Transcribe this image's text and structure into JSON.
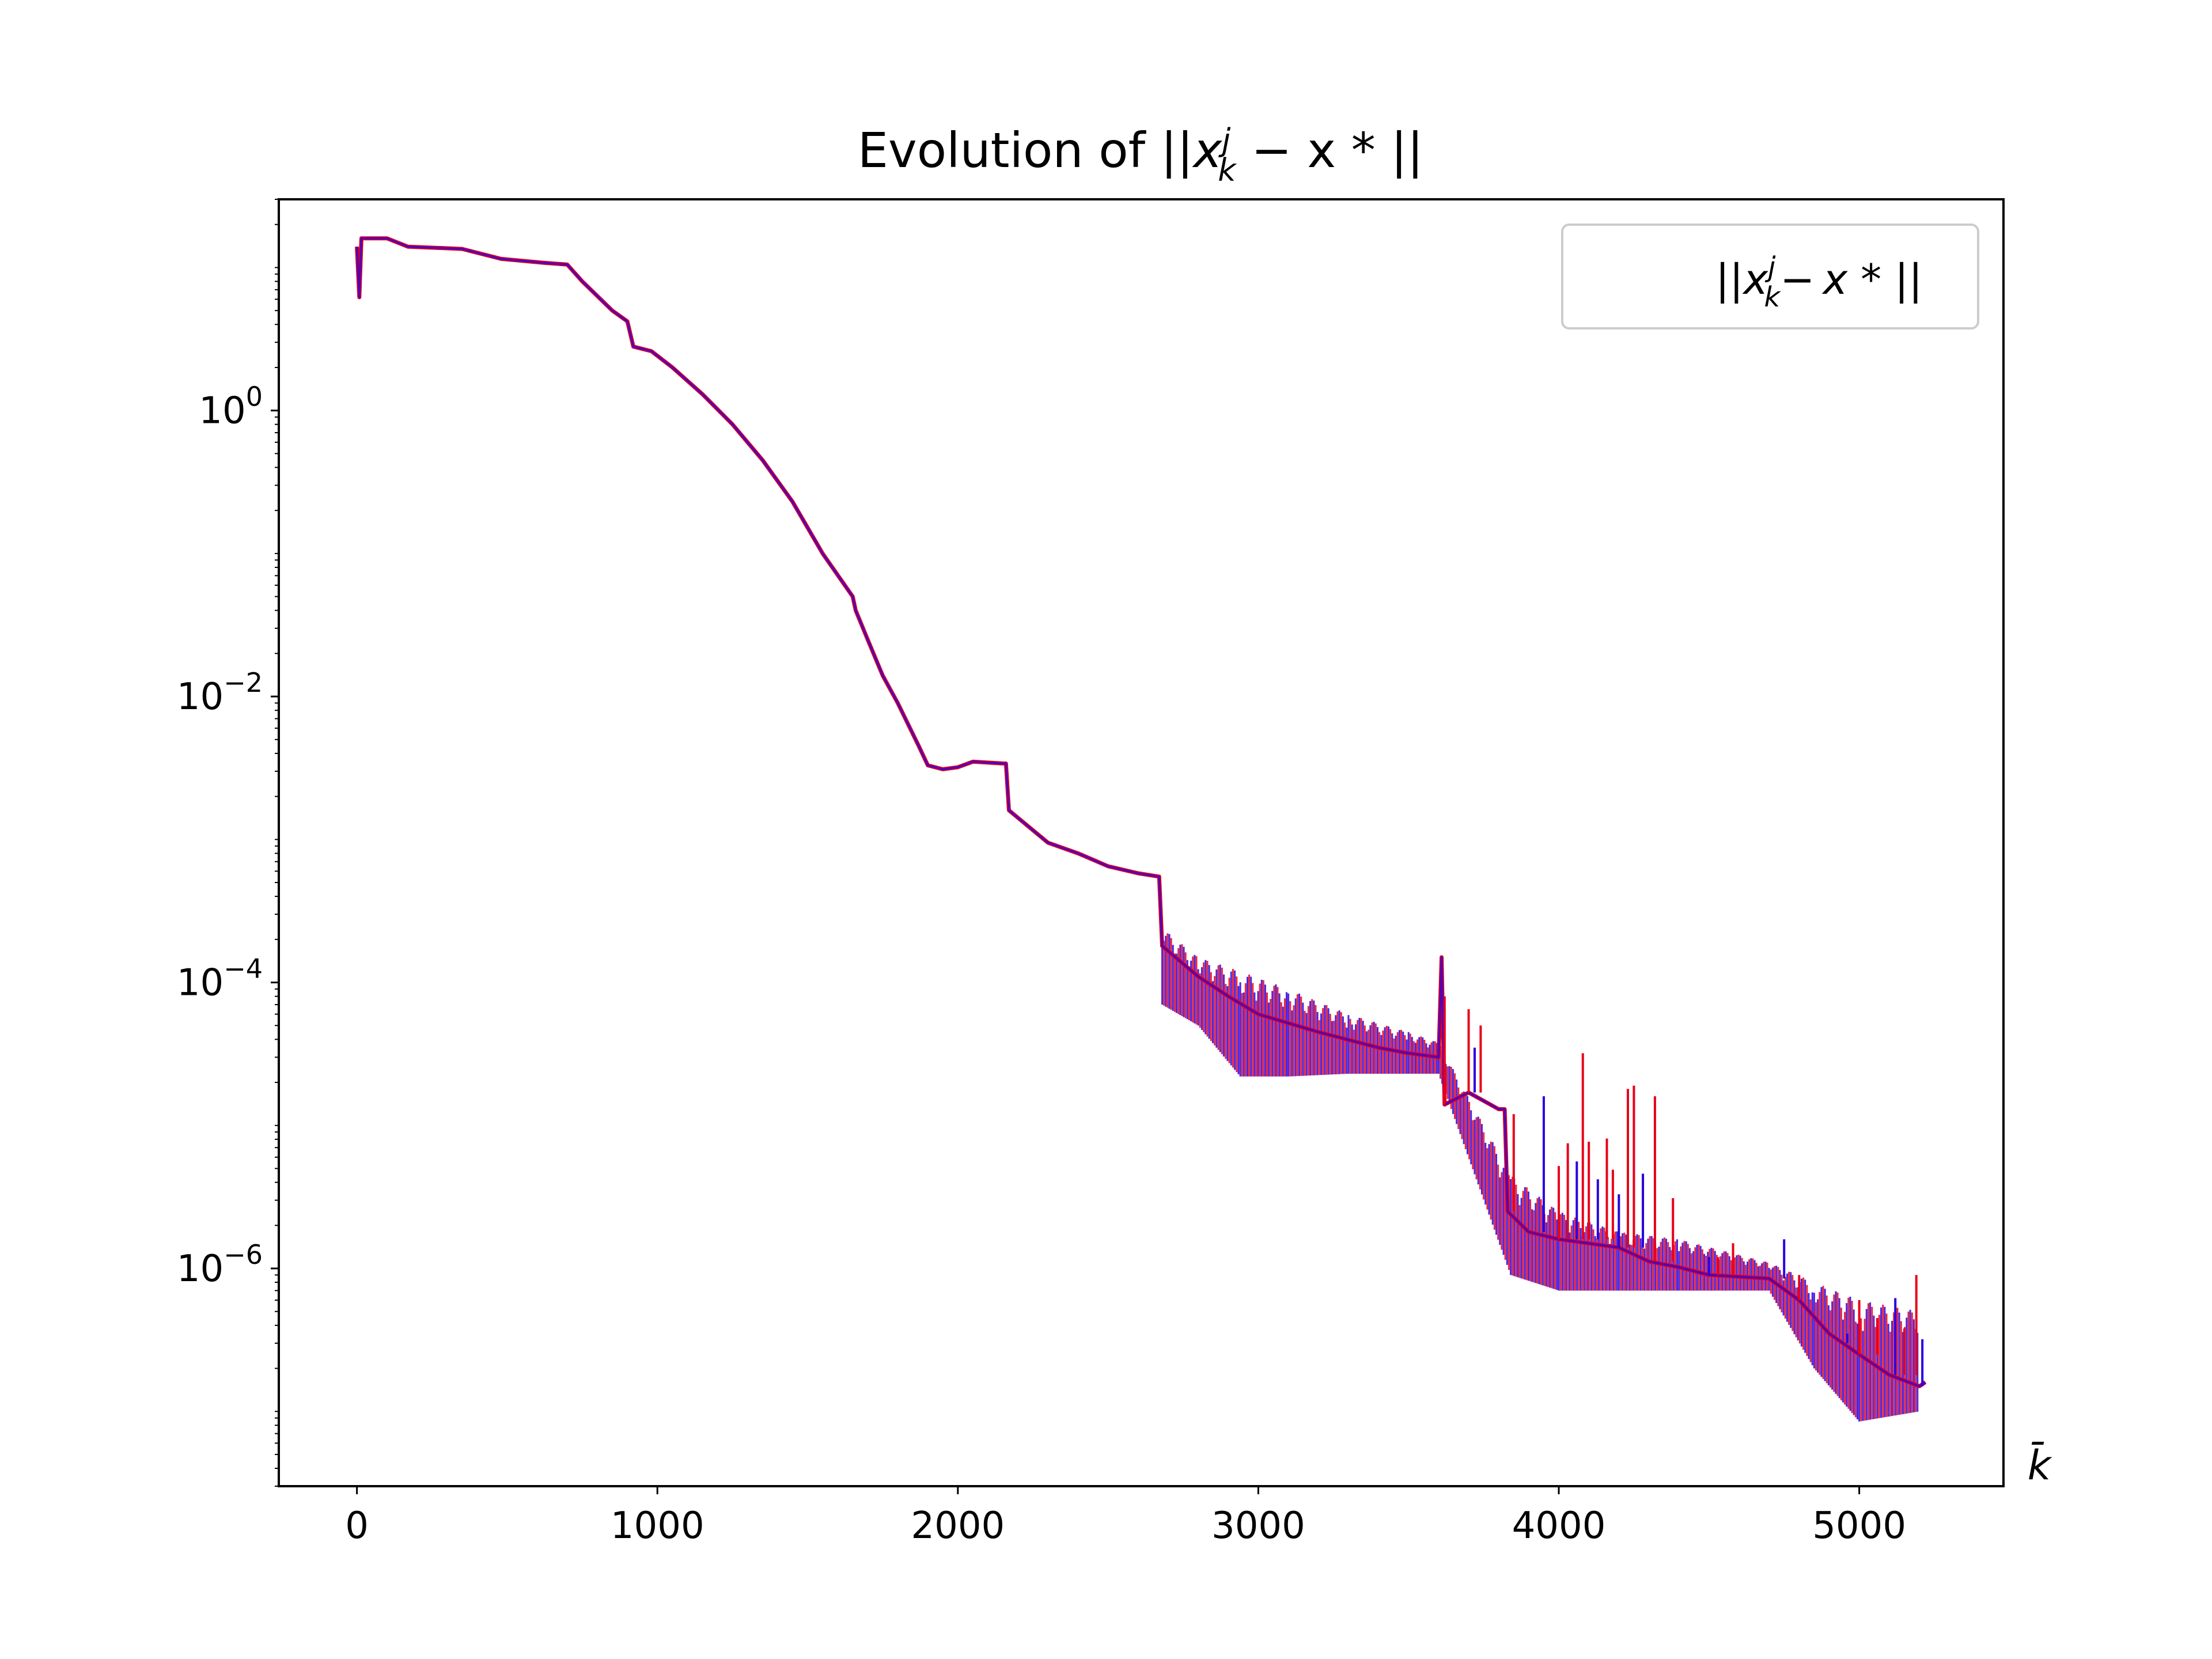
{
  "chart_data": {
    "type": "line",
    "title": "Evolution of ||x_k^j − x*||",
    "title_parts": {
      "prefix": "Evolution of ||",
      "x": "x",
      "sup": "j",
      "sub": "k",
      "suffix": " − x * ||"
    },
    "xlabel": "k̄",
    "ylabel": "",
    "yscale": "log",
    "xlim": [
      -260,
      5480
    ],
    "ylim": [
      3e-08,
      30
    ],
    "xticks": [
      {
        "value": 0,
        "label": "0"
      },
      {
        "value": 1000,
        "label": "1000"
      },
      {
        "value": 2000,
        "label": "2000"
      },
      {
        "value": 3000,
        "label": "3000"
      },
      {
        "value": 4000,
        "label": "4000"
      },
      {
        "value": 5000,
        "label": "5000"
      }
    ],
    "yticks": [
      {
        "value": 1,
        "base": "10",
        "exp": "0"
      },
      {
        "value": 0.01,
        "base": "10",
        "exp": "−2"
      },
      {
        "value": 0.0001,
        "base": "10",
        "exp": "−4"
      },
      {
        "value": 1e-06,
        "base": "10",
        "exp": "−6"
      }
    ],
    "grid": false,
    "legend": {
      "position": "top-right",
      "label": "||x_k^j − x*||"
    },
    "series": [
      {
        "colors": [
          "#e8001a",
          "#2a00e0"
        ],
        "points": [
          [
            0,
            14.0
          ],
          [
            8,
            6.2
          ],
          [
            15,
            16.0
          ],
          [
            100,
            16.0
          ],
          [
            170,
            14.0
          ],
          [
            350,
            13.5
          ],
          [
            480,
            11.5
          ],
          [
            620,
            10.8
          ],
          [
            700,
            10.5
          ],
          [
            750,
            8.0
          ],
          [
            850,
            5.0
          ],
          [
            900,
            4.2
          ],
          [
            920,
            2.8
          ],
          [
            980,
            2.6
          ],
          [
            1050,
            2.0
          ],
          [
            1150,
            1.3
          ],
          [
            1250,
            0.8
          ],
          [
            1350,
            0.45
          ],
          [
            1450,
            0.23
          ],
          [
            1550,
            0.1
          ],
          [
            1650,
            0.05
          ],
          [
            1660,
            0.04
          ],
          [
            1700,
            0.025
          ],
          [
            1750,
            0.014
          ],
          [
            1800,
            0.009
          ],
          [
            1870,
            0.0045
          ],
          [
            1900,
            0.0033
          ],
          [
            1950,
            0.0031
          ],
          [
            2000,
            0.0032
          ],
          [
            2050,
            0.0035
          ],
          [
            2150,
            0.0034
          ],
          [
            2160,
            0.0034
          ],
          [
            2170,
            0.0016
          ],
          [
            2300,
            0.00095
          ],
          [
            2400,
            0.0008
          ],
          [
            2500,
            0.00065
          ],
          [
            2600,
            0.00058
          ],
          [
            2670,
            0.00055
          ],
          [
            2680,
            0.00018
          ],
          [
            2800,
            0.00011
          ],
          [
            2900,
            8e-05
          ],
          [
            3000,
            6e-05
          ],
          [
            3200,
            4.5e-05
          ],
          [
            3400,
            3.5e-05
          ],
          [
            3500,
            3.2e-05
          ],
          [
            3600,
            3e-05
          ],
          [
            3610,
            0.00015
          ],
          [
            3620,
            1.4e-05
          ],
          [
            3700,
            1.7e-05
          ],
          [
            3800,
            1.3e-05
          ],
          [
            3820,
            1.3e-05
          ],
          [
            3830,
            2.5e-06
          ],
          [
            3900,
            1.8e-06
          ],
          [
            4000,
            1.6e-06
          ],
          [
            4200,
            1.4e-06
          ],
          [
            4300,
            1.12e-06
          ],
          [
            4400,
            1.02e-06
          ],
          [
            4500,
            9e-07
          ],
          [
            4700,
            8.5e-07
          ],
          [
            4800,
            6e-07
          ],
          [
            4900,
            3.5e-07
          ],
          [
            5000,
            2.5e-07
          ],
          [
            5100,
            1.8e-07
          ],
          [
            5200,
            1.5e-07
          ],
          [
            5220,
            1.6e-07
          ]
        ],
        "band": [
          [
            2680,
            0.00024,
            7e-05
          ],
          [
            2800,
            0.00015,
            5e-05
          ],
          [
            2940,
            0.00012,
            2.2e-05
          ],
          [
            3100,
            9e-05,
            2.2e-05
          ],
          [
            3300,
            6e-05,
            2.3e-05
          ],
          [
            3500,
            4.5e-05,
            2.3e-05
          ],
          [
            3600,
            3.8e-05,
            2.3e-05
          ],
          [
            3840,
            4.5e-06,
            9e-07
          ],
          [
            4000,
            2.5e-06,
            7e-07
          ],
          [
            4200,
            1.8e-06,
            7e-07
          ],
          [
            4400,
            1.6e-06,
            7e-07
          ],
          [
            4700,
            1.1e-06,
            7e-07
          ],
          [
            4850,
            8e-07,
            2e-07
          ],
          [
            5000,
            6e-07,
            8.5e-08
          ],
          [
            5200,
            5e-07,
            1e-07
          ]
        ],
        "spikes": [
          [
            3620,
            8e-05
          ],
          [
            3700,
            6.5e-05
          ],
          [
            3720,
            3.5e-05
          ],
          [
            3740,
            5e-05
          ],
          [
            3850,
            1.2e-05
          ],
          [
            3950,
            1.6e-05
          ],
          [
            4000,
            5.2e-06
          ],
          [
            4030,
            7.5e-06
          ],
          [
            4060,
            5.6e-06
          ],
          [
            4080,
            3.2e-05
          ],
          [
            4100,
            7.7e-06
          ],
          [
            4130,
            4.2e-06
          ],
          [
            4160,
            8.1e-06
          ],
          [
            4180,
            4.9e-06
          ],
          [
            4200,
            3.3e-06
          ],
          [
            4230,
            1.8e-05
          ],
          [
            4250,
            1.9e-05
          ],
          [
            4280,
            4.6e-06
          ],
          [
            4320,
            1.6e-05
          ],
          [
            4380,
            3.1e-06
          ],
          [
            4500,
            1.2e-06
          ],
          [
            4530,
            1.2e-06
          ],
          [
            4580,
            1.5e-06
          ],
          [
            4750,
            1.6e-06
          ],
          [
            4800,
            9e-07
          ],
          [
            4860,
            6e-07
          ],
          [
            4960,
            3e-07
          ],
          [
            5000,
            6e-07
          ],
          [
            5060,
            4.5e-07
          ],
          [
            5120,
            6.2e-07
          ],
          [
            5150,
            3.8e-07
          ],
          [
            5190,
            9e-07
          ],
          [
            5210,
            3.2e-07
          ]
        ]
      }
    ]
  }
}
